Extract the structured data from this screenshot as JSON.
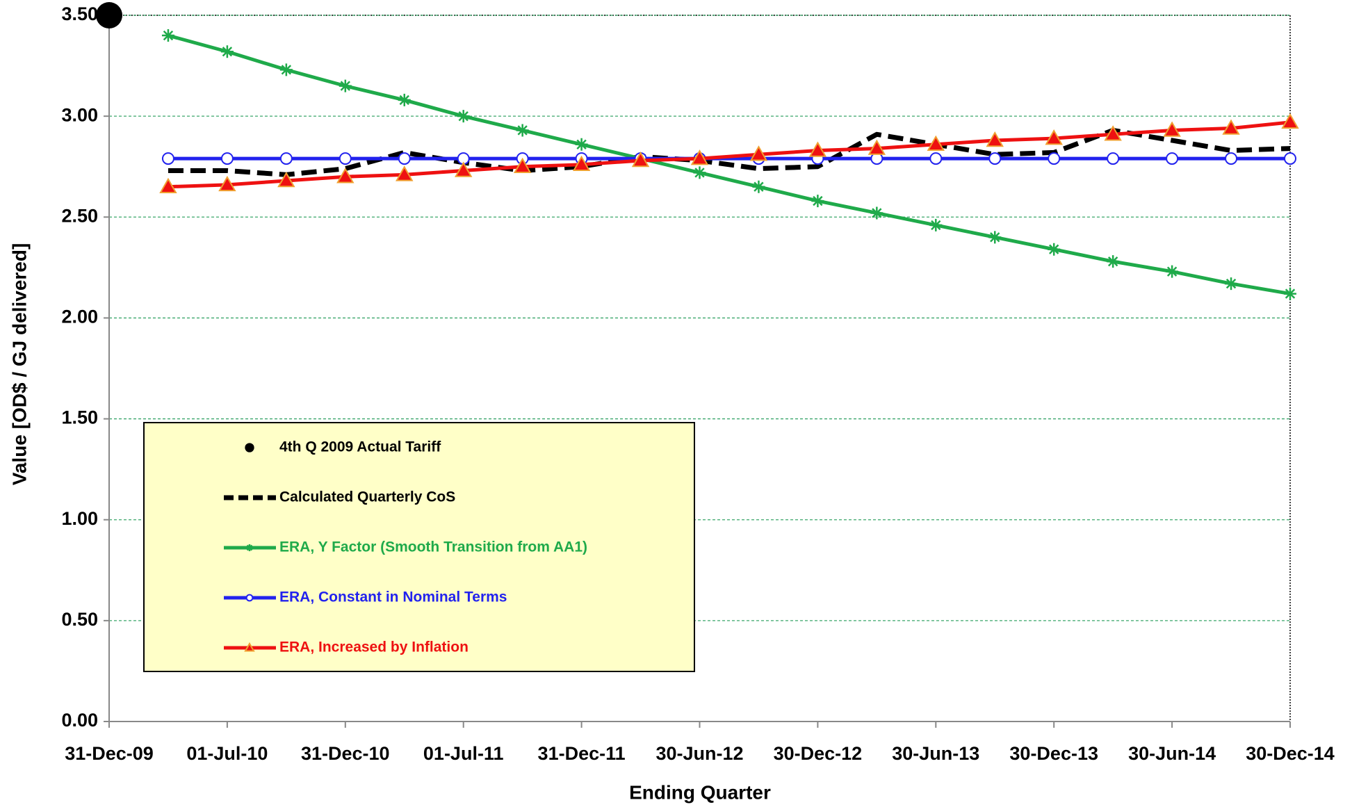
{
  "chart_data": {
    "type": "line",
    "xlabel": "Ending Quarter",
    "ylabel": "Value [OD$ / GJ delivered]",
    "categories": [
      "31-Dec-09",
      null,
      "01-Jul-10",
      null,
      "31-Dec-10",
      null,
      "01-Jul-11",
      null,
      "31-Dec-11",
      null,
      "30-Jun-12",
      null,
      "30-Dec-12",
      null,
      "30-Jun-13",
      null,
      "30-Dec-13",
      null,
      "30-Jun-14",
      null,
      "30-Dec-14"
    ],
    "ylim": [
      0,
      3.5
    ],
    "yticks": [
      {
        "value": 0,
        "label": "0.00"
      },
      {
        "value": 0.5,
        "label": "0.50"
      },
      {
        "value": 1,
        "label": "1.00"
      },
      {
        "value": 1.5,
        "label": "1.50"
      },
      {
        "value": 2,
        "label": "2.00"
      },
      {
        "value": 2.5,
        "label": "2.50"
      },
      {
        "value": 3,
        "label": "3.00"
      },
      {
        "value": 3.5,
        "label": "3.50"
      }
    ],
    "grid": true,
    "grid_color": "#3aa66a",
    "legend": "lower left",
    "legend_background": "#ffffc8",
    "series": [
      {
        "name": "4th Q 2009 Actual Tariff",
        "color": "#000000",
        "line": "none",
        "marker": "dot",
        "values": [
          3.5,
          null,
          null,
          null,
          null,
          null,
          null,
          null,
          null,
          null,
          null,
          null,
          null,
          null,
          null,
          null,
          null,
          null,
          null,
          null,
          null
        ]
      },
      {
        "name": "Calculated Quarterly CoS",
        "color": "#000000",
        "line": "dashed",
        "marker": "none",
        "values": [
          null,
          2.73,
          2.73,
          2.71,
          2.74,
          2.82,
          2.77,
          2.73,
          2.75,
          2.8,
          2.78,
          2.74,
          2.75,
          2.91,
          2.86,
          2.81,
          2.82,
          2.93,
          2.88,
          2.83,
          2.84
        ]
      },
      {
        "name": "ERA, Y Factor (Smooth Transition from AA1)",
        "color": "#1faa4a",
        "line": "solid",
        "marker": "star",
        "values": [
          null,
          3.4,
          3.32,
          3.23,
          3.15,
          3.08,
          3.0,
          2.93,
          2.86,
          2.79,
          2.72,
          2.65,
          2.58,
          2.52,
          2.46,
          2.4,
          2.34,
          2.28,
          2.23,
          2.17,
          2.12
        ]
      },
      {
        "name": "ERA, Constant in Nominal Terms",
        "color": "#2222ee",
        "line": "solid",
        "marker": "circle",
        "values": [
          null,
          2.79,
          2.79,
          2.79,
          2.79,
          2.79,
          2.79,
          2.79,
          2.79,
          2.79,
          2.79,
          2.79,
          2.79,
          2.79,
          2.79,
          2.79,
          2.79,
          2.79,
          2.79,
          2.79,
          2.79
        ]
      },
      {
        "name": "ERA, Increased by Inflation",
        "color": "#ee1111",
        "line": "solid",
        "marker": "triangle",
        "marker_edge": "#f0a030",
        "values": [
          null,
          2.65,
          2.66,
          2.68,
          2.7,
          2.71,
          2.73,
          2.75,
          2.76,
          2.78,
          2.79,
          2.81,
          2.83,
          2.84,
          2.86,
          2.88,
          2.89,
          2.91,
          2.93,
          2.94,
          2.97
        ]
      }
    ]
  }
}
